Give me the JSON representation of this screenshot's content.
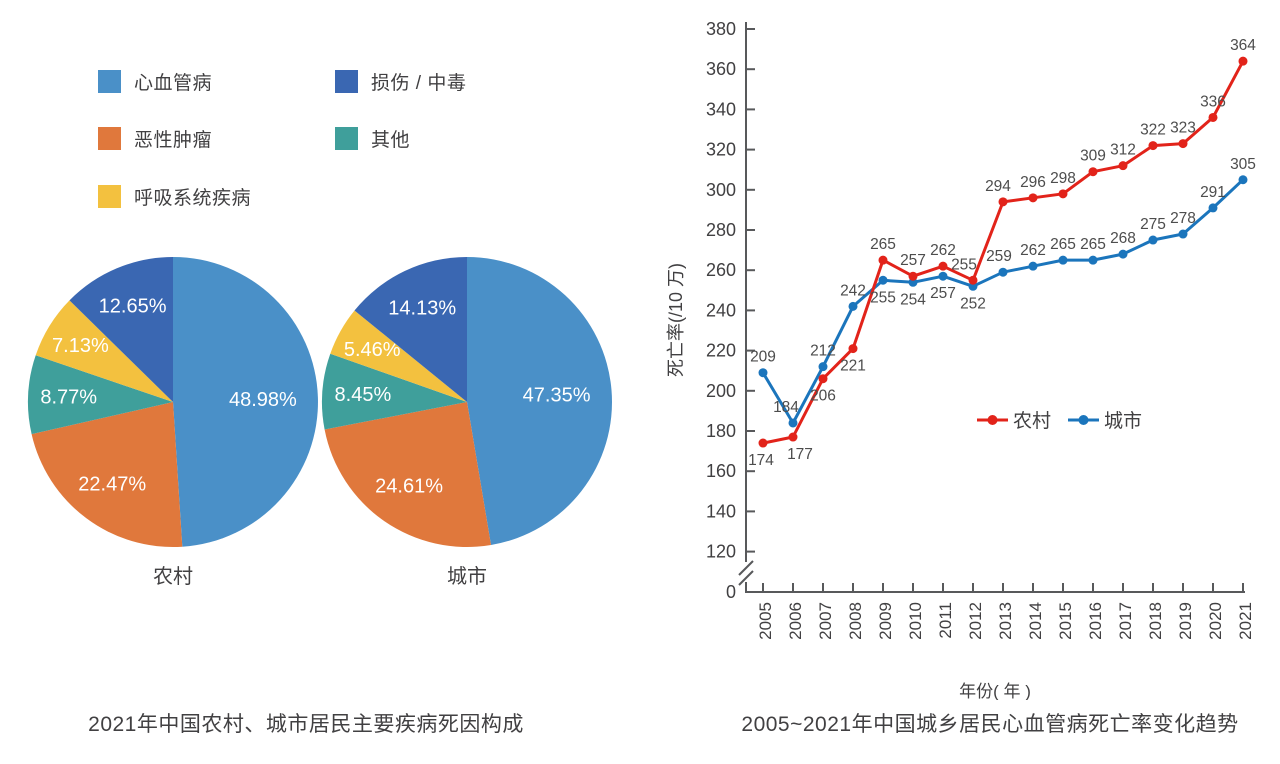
{
  "chart_data": [
    {
      "type": "pie",
      "title": "2021年中国农村、城市居民主要疾病死因构成",
      "legend": [
        {
          "label": "心血管病",
          "color": "#4a90c8"
        },
        {
          "label": "恶性肿瘤",
          "color": "#e0783c"
        },
        {
          "label": "呼吸系统疾病",
          "color": "#f3c13f"
        },
        {
          "label": "损伤 / 中毒",
          "color": "#3a67b2"
        },
        {
          "label": "其他",
          "color": "#3f9f9b"
        }
      ],
      "pies": [
        {
          "label": "农村",
          "slices": [
            {
              "name": "心血管病",
              "value": 48.98,
              "color": "#4a90c8"
            },
            {
              "name": "恶性肿瘤",
              "value": 22.47,
              "color": "#e0783c"
            },
            {
              "name": "其他",
              "value": 8.77,
              "color": "#3f9f9b"
            },
            {
              "name": "呼吸系统疾病",
              "value": 7.13,
              "color": "#f3c13f"
            },
            {
              "name": "损伤/中毒",
              "value": 12.65,
              "color": "#3a67b2"
            }
          ]
        },
        {
          "label": "城市",
          "slices": [
            {
              "name": "心血管病",
              "value": 47.35,
              "color": "#4a90c8"
            },
            {
              "name": "恶性肿瘤",
              "value": 24.61,
              "color": "#e0783c"
            },
            {
              "name": "其他",
              "value": 8.45,
              "color": "#3f9f9b"
            },
            {
              "name": "呼吸系统疾病",
              "value": 5.46,
              "color": "#f3c13f"
            },
            {
              "name": "损伤/中毒",
              "value": 14.13,
              "color": "#3a67b2"
            }
          ]
        }
      ]
    },
    {
      "type": "line",
      "title": "2005~2021年中国城乡居民心血管病死亡率变化趋势",
      "xlabel": "年份( 年 )",
      "ylabel": "死亡率(/10 万)",
      "x": [
        2005,
        2006,
        2007,
        2008,
        2009,
        2010,
        2011,
        2012,
        2013,
        2014,
        2015,
        2016,
        2017,
        2018,
        2019,
        2020,
        2021
      ],
      "yticks": [
        120,
        140,
        160,
        180,
        200,
        220,
        240,
        260,
        280,
        300,
        320,
        340,
        360,
        380
      ],
      "y_origin_label": "0",
      "axis_break": true,
      "ylim": [
        120,
        380
      ],
      "grid": false,
      "legend_position": "inside-right-middle",
      "series": [
        {
          "name": "农村",
          "color": "#e2231a",
          "values": [
            174,
            177,
            206,
            221,
            265,
            257,
            262,
            255,
            294,
            296,
            298,
            309,
            312,
            322,
            323,
            336,
            364
          ]
        },
        {
          "name": "城市",
          "color": "#1b75bc",
          "values": [
            209,
            184,
            212,
            242,
            255,
            254,
            257,
            252,
            259,
            262,
            265,
            265,
            268,
            275,
            278,
            291,
            305
          ]
        }
      ],
      "axis_color": "#58595b",
      "label_color": "#4d4d4d"
    }
  ]
}
